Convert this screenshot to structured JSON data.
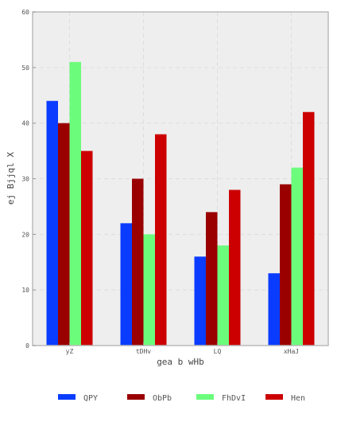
{
  "chart_data": {
    "type": "bar",
    "title": "",
    "xlabel": "gea b wHb",
    "ylabel": "ej Bjjql X",
    "categories": [
      "yZ",
      "tDHv",
      "LQ",
      "xHaJ"
    ],
    "series": [
      {
        "name": "QPY",
        "values": [
          44,
          22,
          16,
          13
        ],
        "color": "#0a3cff"
      },
      {
        "name": "ObPb",
        "values": [
          40,
          30,
          24,
          29
        ],
        "color": "#9a0000"
      },
      {
        "name": "FhDvI",
        "values": [
          51,
          20,
          18,
          32
        ],
        "color": "#6cfc7c"
      },
      {
        "name": "Hen",
        "values": [
          35,
          38,
          28,
          42
        ],
        "color": "#cc0000"
      }
    ],
    "ylim": [
      0,
      60
    ],
    "yticks": [
      0,
      10,
      20,
      30,
      40,
      50,
      60
    ],
    "grid": true,
    "legend_position": "bottom",
    "background": "#eeeeee"
  }
}
